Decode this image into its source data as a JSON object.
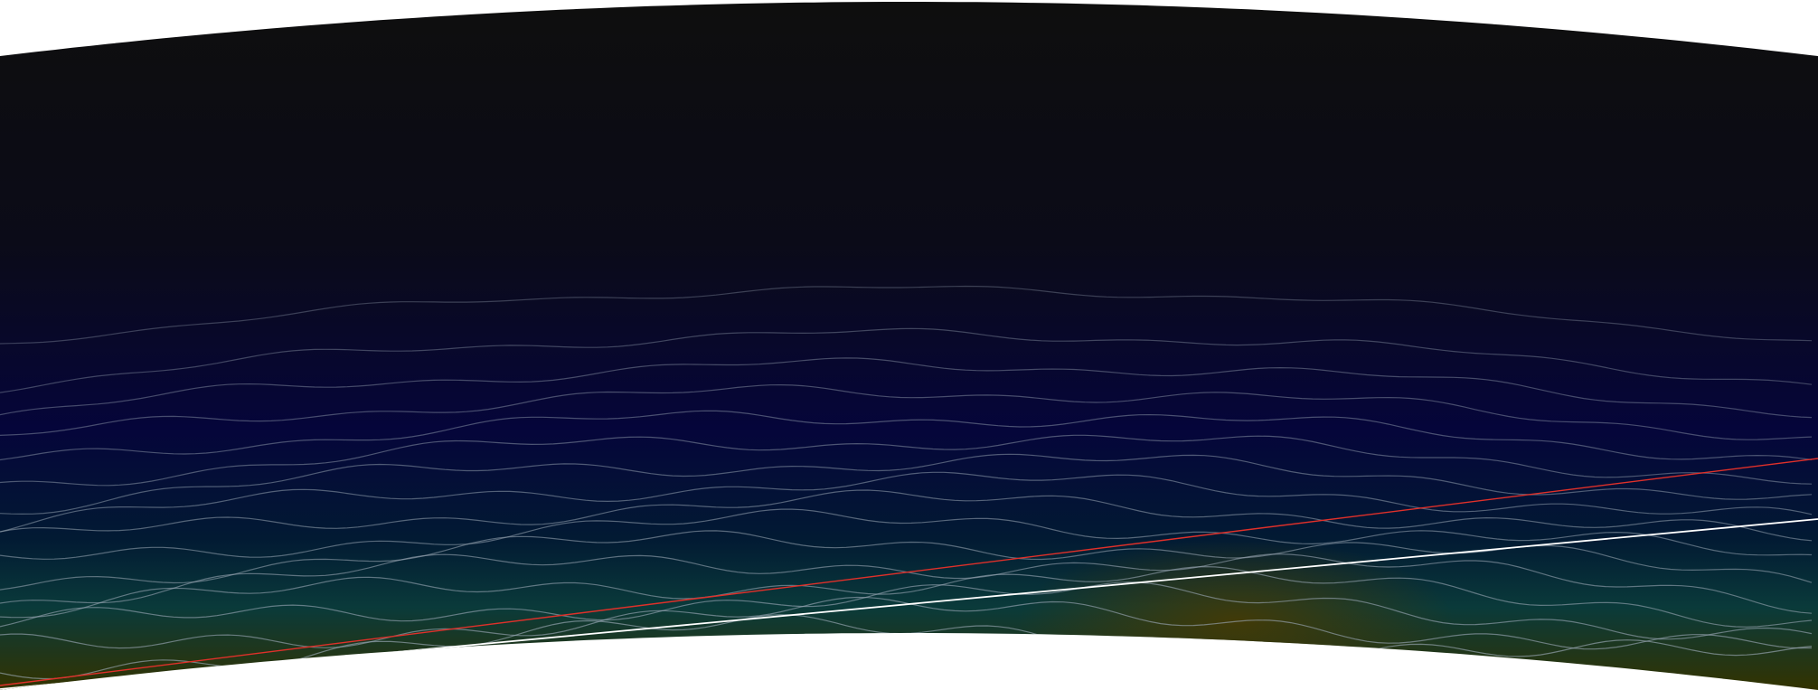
{
  "radar_scan": {
    "background": "#ffffff",
    "sky_color": "#0e0e0e",
    "field_colors": {
      "top": "#0e0e0e",
      "upper": "#0b0b18",
      "middle": "#05053a",
      "lower": "#021a33",
      "ground_teal": "#0a3a3a",
      "ground_olive": "#333300"
    },
    "contour_color": "#9aa7b4",
    "contour_count": 16,
    "lines": [
      {
        "name": "red-track-line",
        "color": "#e0302a"
      },
      {
        "name": "white-track-line",
        "color": "#ffffff"
      }
    ]
  }
}
